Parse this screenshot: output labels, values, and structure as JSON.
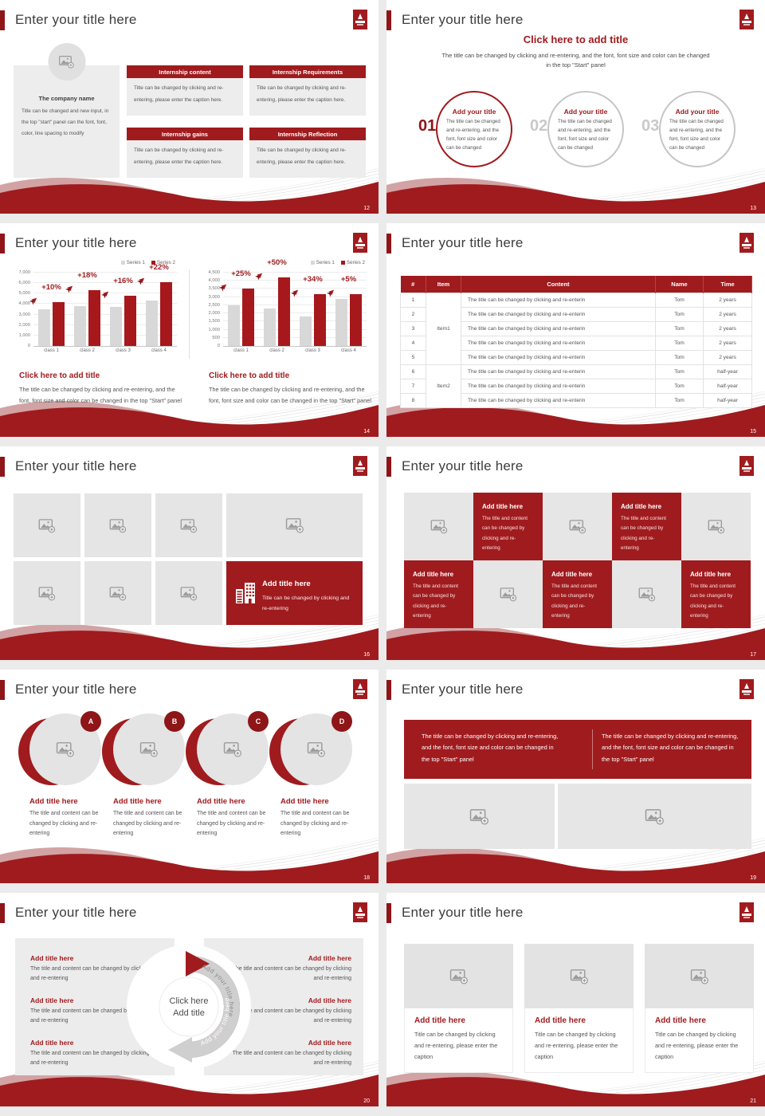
{
  "theme": {
    "primary_red": "#A01B1E",
    "dark_red": "#8E1518",
    "chart_red": "#A6181C",
    "pink_wave": "#D2A3A4",
    "light_gray_panel": "#EDEDED",
    "body_text": "#555555",
    "title_text": "#3D3D3D"
  },
  "common": {
    "slide_title": "Enter your title here"
  },
  "slides": {
    "s12": {
      "page": "12",
      "company_title": "The company name",
      "company_body": "Title can be changed and new input, in the top \"start\" panel can the font, font, color, line spacing to modify",
      "boxes": [
        {
          "header": "Internship content",
          "body": "Title can be changed by clicking and re-entering, please enter the caption here."
        },
        {
          "header": "Internship Requirements",
          "body": "Title can be changed by clicking and re-entering, please enter the caption here."
        },
        {
          "header": "Internship gains",
          "body": "Title can be changed by clicking and re-entering, please enter the caption here."
        },
        {
          "header": "Internship Reflection",
          "body": "Title can be changed by clicking and re-entering, please enter the caption here."
        }
      ]
    },
    "s13": {
      "page": "13",
      "heading": "Click here to add title",
      "subtitle": "The title can be changed by clicking and re-entering, and the font, font size and color can be changed in the top \"Start\" panel",
      "items": [
        {
          "num": "01",
          "title": "Add your title",
          "body": "The title can be changed and re-entering, and the font, font size and color can be changed"
        },
        {
          "num": "02",
          "title": "Add your title",
          "body": "The title can be changed and re-entering, and the font, font size and color can be changed"
        },
        {
          "num": "03",
          "title": "Add your title",
          "body": "The title can be changed and re-entering, and the font, font size and color can be changed"
        }
      ]
    },
    "s14": {
      "page": "14",
      "chart_data": [
        {
          "type": "bar",
          "categories": [
            "class 1",
            "class 2",
            "class 3",
            "class 4"
          ],
          "series": [
            {
              "name": "Series 1",
              "color": "#D8D8D8",
              "values": [
                3500,
                3800,
                3700,
                4300
              ]
            },
            {
              "name": "Series 2",
              "color": "#A6181C",
              "values": [
                4200,
                5300,
                4800,
                6100
              ]
            }
          ],
          "point_labels": [
            "+10%",
            "+18%",
            "+16%",
            "+22%"
          ],
          "ylim": [
            0,
            7000
          ],
          "ytick_step": 1000,
          "grid": true,
          "legend_position": "top-right"
        },
        {
          "type": "bar",
          "categories": [
            "class 1",
            "class 2",
            "class 3",
            "class 4"
          ],
          "series": [
            {
              "name": "Series 1",
              "color": "#D8D8D8",
              "values": [
                2500,
                2300,
                1800,
                2900
              ]
            },
            {
              "name": "Series 2",
              "color": "#A6181C",
              "values": [
                3500,
                4200,
                3200,
                3200
              ]
            }
          ],
          "point_labels": [
            "+25%",
            "+50%",
            "+34%",
            "+5%"
          ],
          "ylim": [
            0,
            4500
          ],
          "ytick_step": 500,
          "grid": true,
          "legend_position": "top-right"
        }
      ],
      "captions": [
        {
          "title": "Click here to add title",
          "body": "The title can be changed by clicking and re-entering, and the font, font size and color can be changed in the top \"Start\" panel"
        },
        {
          "title": "Click here to add title",
          "body": "The title can be changed by clicking and re-entering, and the font, font size and color can be changed in the top \"Start\" panel"
        }
      ]
    },
    "s15": {
      "page": "15",
      "table": {
        "headers": [
          "#",
          "Item",
          "Content",
          "Name",
          "Time"
        ],
        "groups": [
          {
            "item": "Item1",
            "rows": [
              {
                "n": "1",
                "content": "The title can be changed by clicking and re-enterin",
                "name": "Tom",
                "time": "2 years"
              },
              {
                "n": "2",
                "content": "The title can be changed by clicking and re-enterin",
                "name": "Tom",
                "time": "2 years"
              },
              {
                "n": "3",
                "content": "The title can be changed by clicking and re-enterin",
                "name": "Tom",
                "time": "2 years"
              },
              {
                "n": "4",
                "content": "The title can be changed by clicking and re-enterin",
                "name": "Tom",
                "time": "2 years"
              },
              {
                "n": "5",
                "content": "The title can be changed by clicking and re-enterin",
                "name": "Tom",
                "time": "2 years"
              }
            ]
          },
          {
            "item": "Item2",
            "rows": [
              {
                "n": "6",
                "content": "The title can be changed by clicking and re-enterin",
                "name": "Tom",
                "time": "half-year"
              },
              {
                "n": "7",
                "content": "The title can be changed by clicking and re-enterin",
                "name": "Tom",
                "time": "half-year"
              },
              {
                "n": "8",
                "content": "The title can be changed by clicking and re-enterin",
                "name": "Tom",
                "time": "half-year"
              }
            ]
          }
        ]
      }
    },
    "s16": {
      "page": "16",
      "red_card": {
        "title": "Add title here",
        "body": "Title can be changed by clicking and re-entering"
      }
    },
    "s17": {
      "page": "17",
      "card": {
        "title": "Add title here",
        "body": "The title and content can be changed by clicking and re-entering"
      }
    },
    "s18": {
      "page": "18",
      "letters": [
        "A",
        "B",
        "C",
        "D"
      ],
      "card": {
        "title": "Add title here",
        "body": "The title and content can be changed by clicking and re-entering"
      }
    },
    "s19": {
      "page": "19",
      "banner_text": "The title can be changed by clicking and re-entering, and the font, font size and color can be changed in the top \"Start\" panel"
    },
    "s20": {
      "page": "20",
      "center_line1": "Click here",
      "center_line2": "Add title",
      "arrow_label": "Add your title here",
      "card": {
        "title": "Add title here",
        "body": "The title and content can be changed by clicking and re-entering"
      }
    },
    "s21": {
      "page": "21",
      "card": {
        "title": "Add title here",
        "body": "Title can be changed by clicking and re-entering, please enter the caption"
      }
    }
  }
}
